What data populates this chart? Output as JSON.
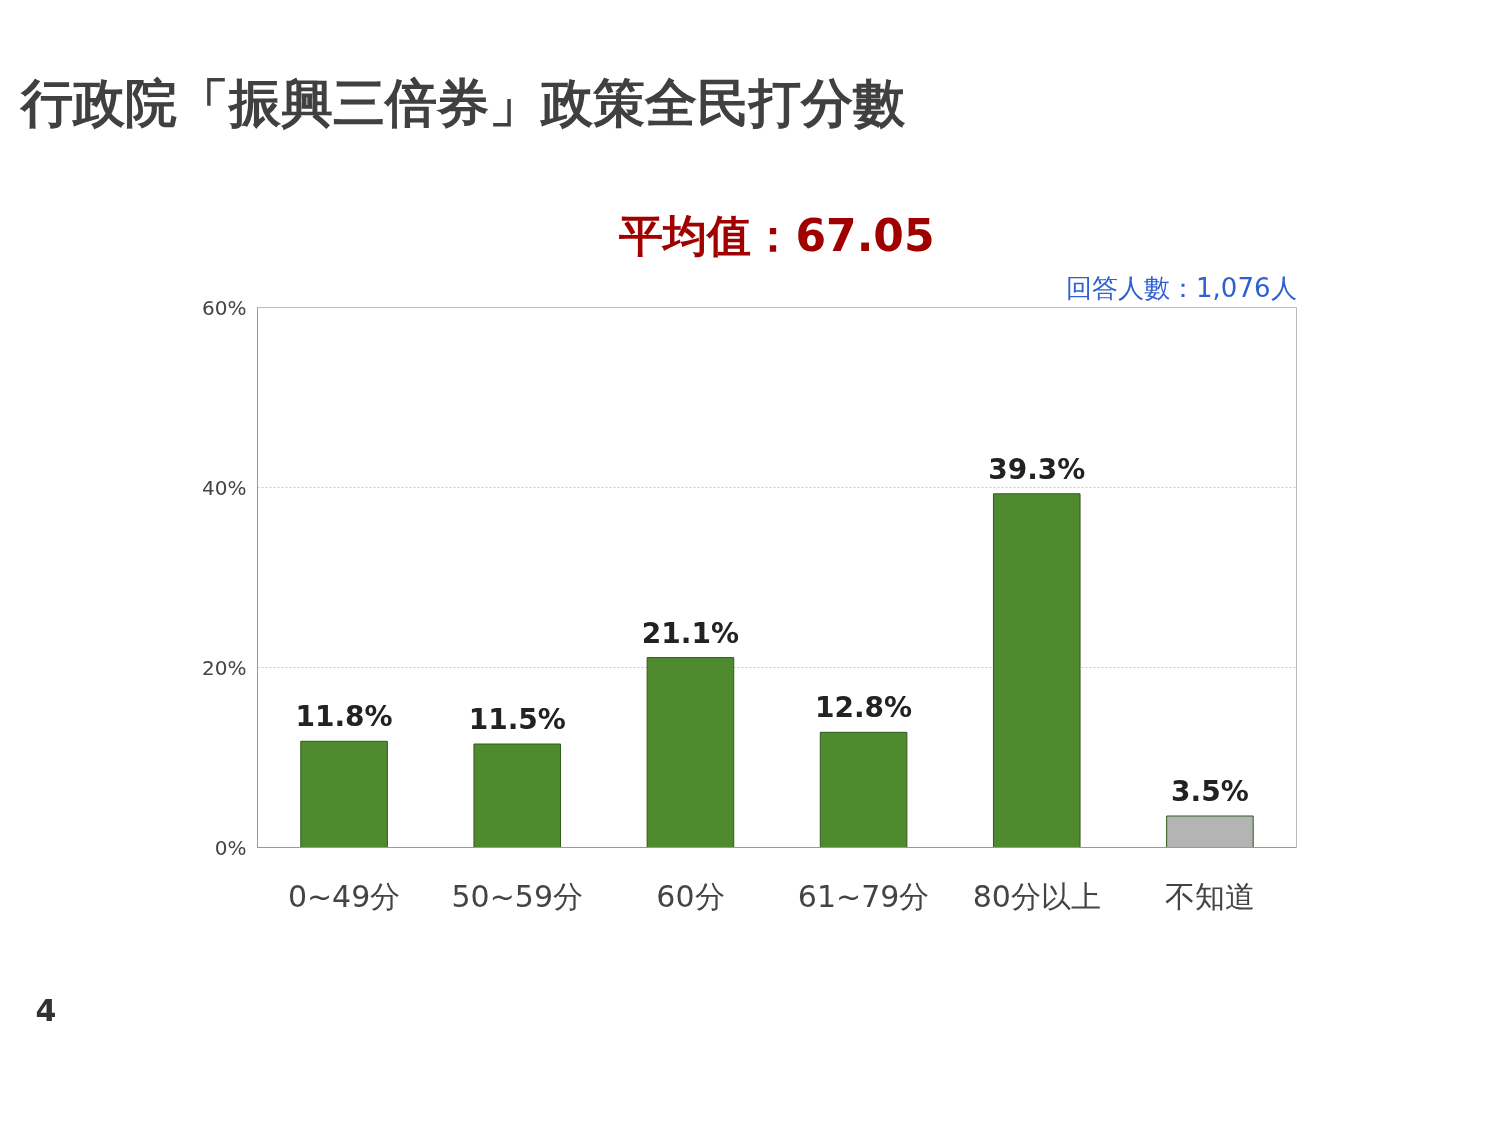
{
  "chart_data": {
    "type": "bar",
    "title": "行政院「振興三倍券」政策全民打分數",
    "categories": [
      "0~49分",
      "50~59分",
      "60分",
      "61~79分",
      "80分以上",
      "不知道"
    ],
    "values": [
      11.8,
      11.5,
      21.1,
      12.8,
      39.3,
      3.5
    ],
    "colors": [
      "#4f8a2f",
      "#4f8a2f",
      "#4f8a2f",
      "#4f8a2f",
      "#4f8a2f",
      "#b4b4b4"
    ],
    "ylim": [
      0,
      60
    ],
    "yticks": [
      {
        "value": 0,
        "label": "0%"
      },
      {
        "value": 20,
        "label": "20%"
      },
      {
        "value": 40,
        "label": "40%"
      },
      {
        "value": 60,
        "label": "60%"
      }
    ],
    "value_labels": [
      "11.8%",
      "11.5%",
      "21.1%",
      "12.8%",
      "39.3%",
      "3.5%"
    ],
    "grid": "y",
    "annotations": [
      "平均值：67.05",
      "回答人數：1,076人",
      "4"
    ]
  }
}
